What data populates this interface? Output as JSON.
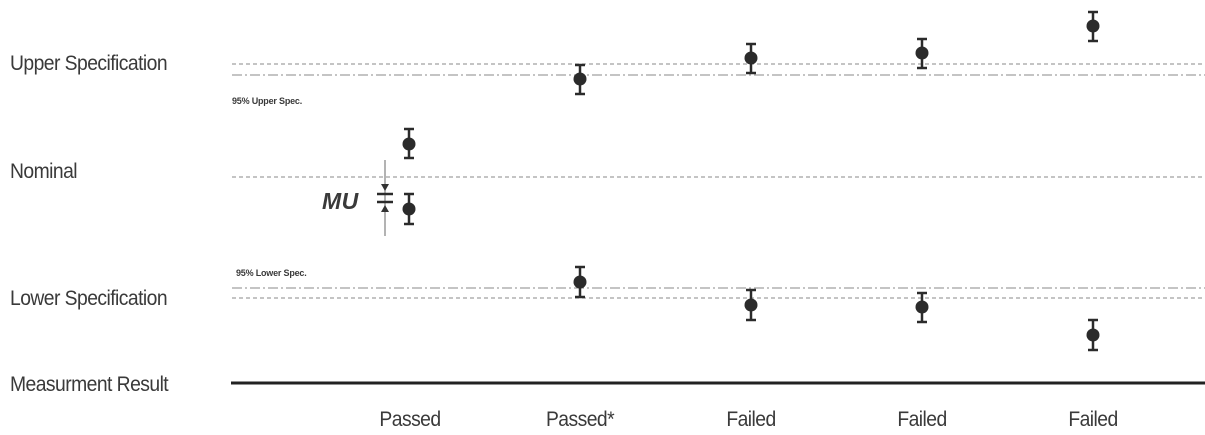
{
  "labels": {
    "upper_specification": "Upper Specification",
    "nominal": "Nominal",
    "lower_specification": "Lower Specification",
    "measurement_result": "Measurment Result",
    "upper_95": "95% Upper Spec.",
    "lower_95": "95% Lower Spec.",
    "mu": "MU"
  },
  "results": [
    "Passed",
    "Passed*",
    "Failed",
    "Failed",
    "Failed"
  ],
  "colors": {
    "text": "#3a3a3a",
    "marker": "#2b2b2b",
    "guide": "#8a8a8a"
  }
}
